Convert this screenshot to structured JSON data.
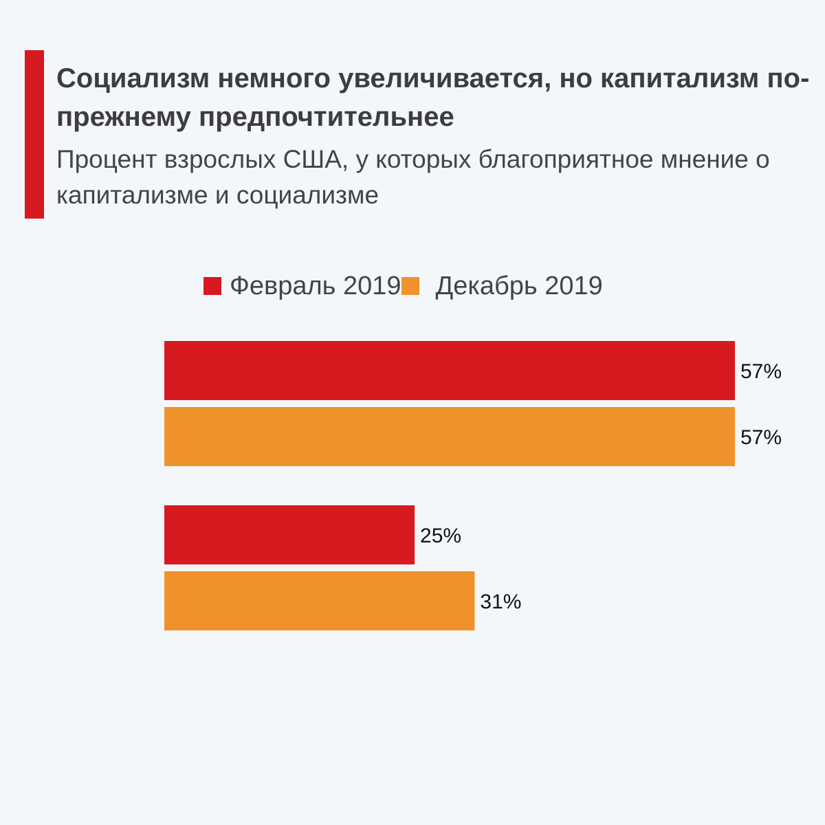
{
  "title": "Социализм немного увеличивается, но капитализм по-прежнему предпочтительнее",
  "subtitle": "Процент взрослых США, у которых благоприятное мнение о капитализме и социализме",
  "colors": {
    "background": "#f4f7fa",
    "accent": "#d71920",
    "feb": "#d71920",
    "dec": "#ef922c",
    "text": "#3d3d3f"
  },
  "legend": [
    {
      "label": "Февраль 2019",
      "color": "#d71920"
    },
    {
      "label": "Декабрь 2019",
      "color": "#ef922c"
    }
  ],
  "chart_data": {
    "type": "bar",
    "orientation": "horizontal",
    "categories": [
      "",
      ""
    ],
    "series": [
      {
        "name": "Февраль 2019",
        "color": "#d71920",
        "values": [
          57,
          25
        ]
      },
      {
        "name": "Декабрь 2019",
        "color": "#ef922c",
        "values": [
          57,
          31
        ]
      }
    ],
    "value_suffix": "%",
    "xlim": [
      0,
      57
    ],
    "grid": false,
    "legend_position": "top"
  }
}
